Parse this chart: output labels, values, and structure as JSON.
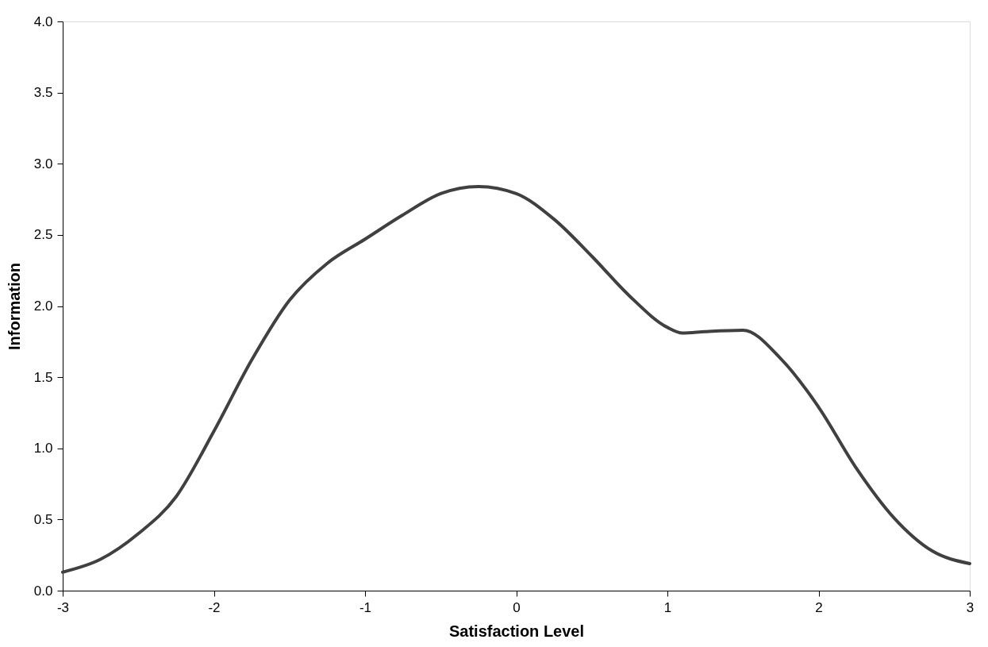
{
  "chart_data": {
    "type": "line",
    "xlabel": "Satisfaction Level",
    "ylabel": "Information",
    "x": [
      -3,
      -2.75,
      -2.5,
      -2.25,
      -2,
      -1.75,
      -1.5,
      -1.25,
      -1,
      -0.75,
      -0.5,
      -0.25,
      0,
      0.25,
      0.5,
      0.75,
      1,
      1.1,
      1.25,
      1.5,
      1.75,
      2,
      2.25,
      2.5,
      2.75,
      3
    ],
    "series": [
      {
        "color": "#404040",
        "values": [
          0.13,
          0.22,
          0.4,
          0.66,
          1.12,
          1.62,
          2.04,
          2.3,
          2.47,
          2.64,
          2.79,
          2.84,
          2.79,
          2.61,
          2.35,
          2.07,
          1.85,
          1.81,
          1.82,
          1.83,
          1.63,
          1.29,
          0.86,
          0.51,
          0.28,
          0.19
        ]
      }
    ],
    "xlim": [
      -3,
      3
    ],
    "xticks": [
      -3,
      -2,
      -1,
      0,
      1,
      2,
      3
    ],
    "ylim": [
      0,
      4
    ],
    "yticks": [
      {
        "value": 0,
        "label": "0.0"
      },
      {
        "value": 0.5,
        "label": "0.5"
      },
      {
        "value": 1,
        "label": "1.0"
      },
      {
        "value": 1.5,
        "label": "1.5"
      },
      {
        "value": 2,
        "label": "2.0"
      },
      {
        "value": 2.5,
        "label": "2.5"
      },
      {
        "value": 3,
        "label": "3.0"
      },
      {
        "value": 3.5,
        "label": "3.5"
      },
      {
        "value": 4,
        "label": "4.0"
      }
    ],
    "grid": false,
    "marker": "none",
    "line_style": "solid"
  }
}
